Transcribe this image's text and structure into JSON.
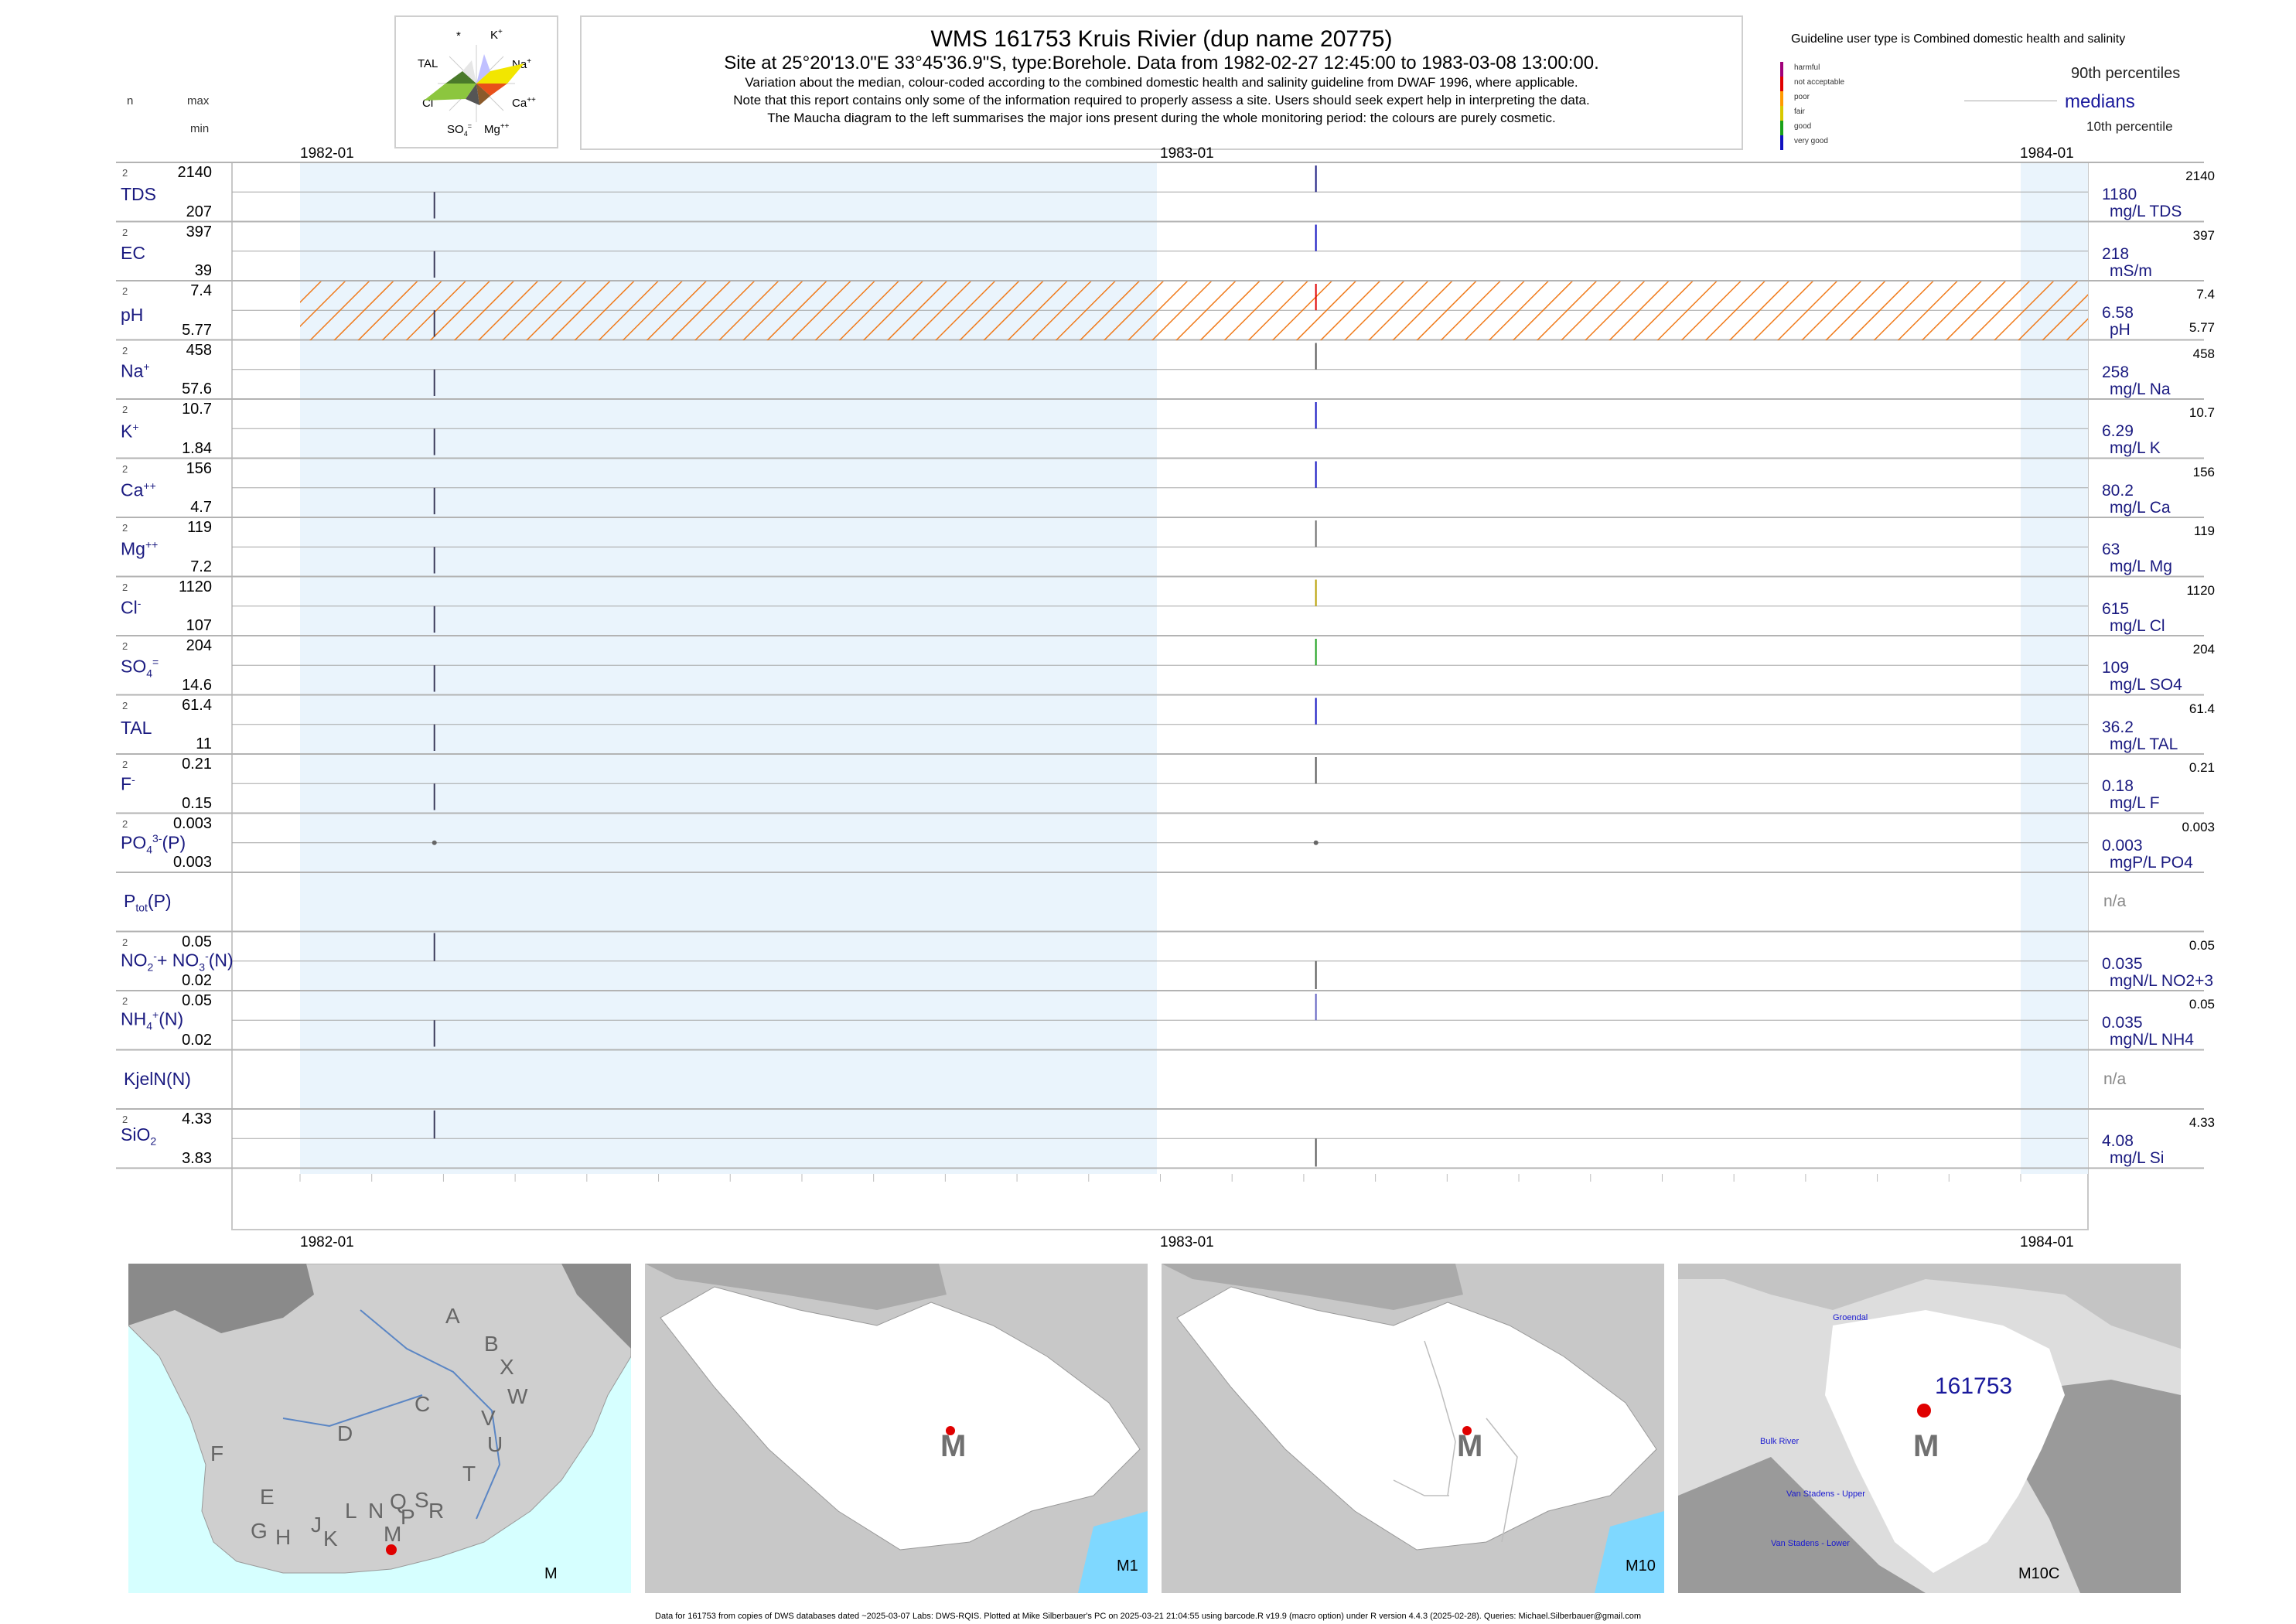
{
  "header": {
    "title": "WMS 161753  Kruis Rivier (dup name 20775)",
    "site": "Site at 25°20'13.0\"E 33°45'36.9\"S, type:Borehole.  Data from 1982-02-27 12:45:00 to 1983-03-08 13:00:00.",
    "line3": "Variation about the median,  colour-coded according to the combined domestic health and salinity guideline from DWAF 1996, where applicable.",
    "line4": "Note that this report contains only some of the information required to properly assess a site. Users should seek expert help in interpreting the data.",
    "line5": "The Maucha diagram to the left summarises the major ions present during the whole monitoring period: the colours are purely cosmetic."
  },
  "maucha": {
    "star": "*",
    "k": "K",
    "na": "Na",
    "ca": "Ca",
    "mg": "Mg",
    "so4": "SO",
    "cl": "Cl",
    "tal": "TAL"
  },
  "col_headers": {
    "n": "n",
    "max": "max",
    "min": "min"
  },
  "legend": {
    "title": "Guideline user type is Combined domestic health and salinity",
    "items": [
      {
        "label": "harmful",
        "color": "#a0007a"
      },
      {
        "label": "not acceptable",
        "color": "#e00000"
      },
      {
        "label": "poor",
        "color": "#ff9a00"
      },
      {
        "label": "fair",
        "color": "#d8c800"
      },
      {
        "label": "good",
        "color": "#1aa01a"
      },
      {
        "label": "very good",
        "color": "#1010c0"
      }
    ],
    "p90": "90th percentiles",
    "median": "medians",
    "p10": "10th percentile"
  },
  "axis": {
    "top": [
      "1982-01",
      "1983-01",
      "1984-01"
    ],
    "bottom": [
      "1982-01",
      "1983-01",
      "1984-01"
    ]
  },
  "chart_data": {
    "type": "scatter",
    "x_range": [
      "1982-01",
      "1984-01"
    ],
    "sample_dates": [
      "1982-02-27",
      "1983-03-08"
    ],
    "rows": [
      {
        "label": "TDS",
        "n": "2",
        "max": "2140",
        "min": "207",
        "median": "1180",
        "unit": "mg/L TDS",
        "rmax": "2140",
        "rmin": ""
      },
      {
        "label": "EC",
        "n": "2",
        "max": "397",
        "min": "39",
        "median": "218",
        "unit": "mS/m",
        "rmax": "397",
        "rmin": ""
      },
      {
        "label": "pH",
        "n": "2",
        "max": "7.4",
        "min": "5.77",
        "median": "6.58",
        "unit": "pH",
        "rmax": "7.4",
        "rmin": "5.77"
      },
      {
        "label": "Na",
        "n": "2",
        "max": "458",
        "min": "57.6",
        "median": "258",
        "unit": "mg/L Na",
        "rmax": "458",
        "rmin": ""
      },
      {
        "label": "K",
        "n": "2",
        "max": "10.7",
        "min": "1.84",
        "median": "6.29",
        "unit": "mg/L K",
        "rmax": "10.7",
        "rmin": ""
      },
      {
        "label": "Ca",
        "n": "2",
        "max": "156",
        "min": "4.7",
        "median": "80.2",
        "unit": "mg/L Ca",
        "rmax": "156",
        "rmin": ""
      },
      {
        "label": "Mg",
        "n": "2",
        "max": "119",
        "min": "7.2",
        "median": "63",
        "unit": "mg/L Mg",
        "rmax": "119",
        "rmin": ""
      },
      {
        "label": "Cl",
        "n": "2",
        "max": "1120",
        "min": "107",
        "median": "615",
        "unit": "mg/L Cl",
        "rmax": "1120",
        "rmin": ""
      },
      {
        "label": "SO",
        "n": "2",
        "max": "204",
        "min": "14.6",
        "median": "109",
        "unit": "mg/L SO4",
        "rmax": "204",
        "rmin": ""
      },
      {
        "label": "TAL",
        "n": "2",
        "max": "61.4",
        "min": "11",
        "median": "36.2",
        "unit": "mg/L TAL",
        "rmax": "61.4",
        "rmin": ""
      },
      {
        "label": "F",
        "n": "2",
        "max": "0.21",
        "min": "0.15",
        "median": "0.18",
        "unit": "mg/L F",
        "rmax": "0.21",
        "rmin": ""
      },
      {
        "label": "PO",
        "n": "2",
        "max": "0.003",
        "min": "0.003",
        "median": "0.003",
        "unit": "mgP/L PO4",
        "rmax": "0.003",
        "rmin": ""
      },
      {
        "label": "P",
        "n": "",
        "max": "",
        "min": "",
        "median": "n/a",
        "unit": "",
        "rmax": "",
        "rmin": ""
      },
      {
        "label": "NO",
        "n": "2",
        "max": "0.05",
        "min": "0.02",
        "median": "0.035",
        "unit": "mgN/L NO2+3",
        "rmax": "0.05",
        "rmin": ""
      },
      {
        "label": "NH",
        "n": "2",
        "max": "0.05",
        "min": "0.02",
        "median": "0.035",
        "unit": "mgN/L NH4",
        "rmax": "0.05",
        "rmin": ""
      },
      {
        "label": "KjelN(N)",
        "n": "",
        "max": "",
        "min": "",
        "median": "n/a",
        "unit": "",
        "rmax": "",
        "rmin": ""
      },
      {
        "label": "SiO",
        "n": "2",
        "max": "4.33",
        "min": "3.83",
        "median": "4.08",
        "unit": "mg/L Si",
        "rmax": "4.33",
        "rmin": ""
      }
    ],
    "guideline_band_row": "pH"
  },
  "maps": {
    "m": {
      "caption": "M",
      "letters": [
        "A",
        "B",
        "X",
        "C",
        "W",
        "D",
        "V",
        "U",
        "F",
        "T",
        "E",
        "G",
        "H",
        "J",
        "K",
        "L",
        "N",
        "Q",
        "S",
        "M",
        "P",
        "R"
      ]
    },
    "m1": {
      "caption": "M1",
      "marker": "M"
    },
    "m10": {
      "caption": "M10",
      "marker": "M"
    },
    "m10c": {
      "caption": "M10C",
      "marker": "M",
      "site": "161753",
      "towns": [
        "Groendal",
        "Bulk River",
        "Van Stadens - Upper",
        "Van Stadens - Lower"
      ]
    }
  },
  "footer": "Data for 161753 from copies of DWS databases dated ~2025-03-07 Labs: DWS-RQIS. Plotted at Mike Silberbauer's PC on 2025-03-21 21:04:55 using barcode.R v19.9 (macro option) under R version 4.4.3 (2025-02-28). Queries: Michael.Silberbauer@gmail.com"
}
